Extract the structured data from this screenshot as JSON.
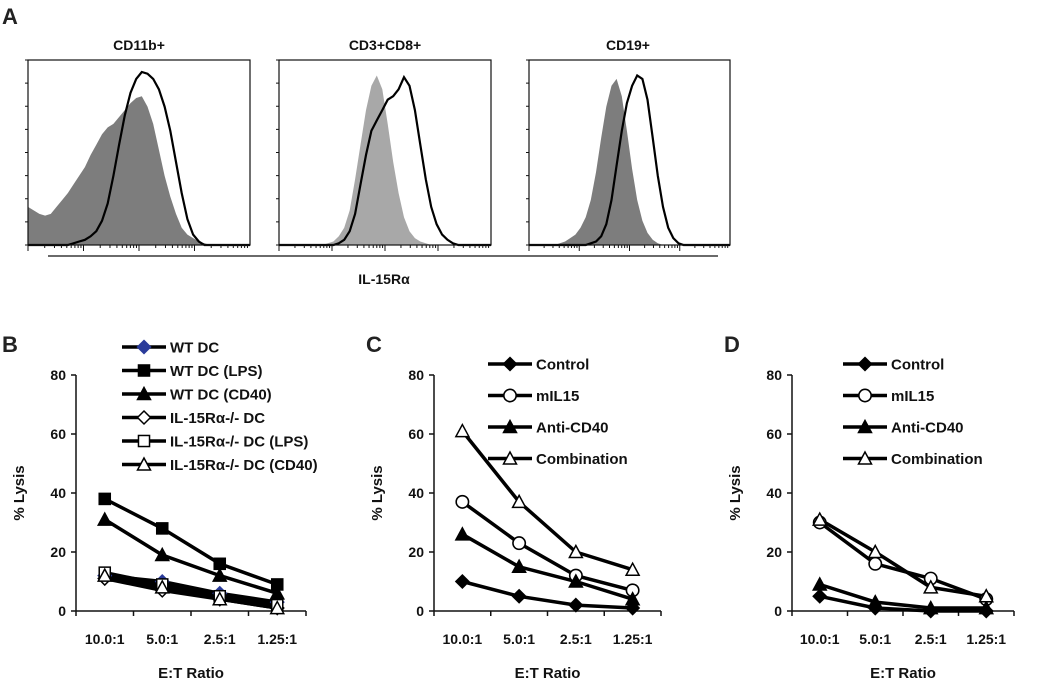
{
  "panel_letters": {
    "a": "A",
    "b": "B",
    "c": "C",
    "d": "D"
  },
  "histograms": {
    "xlabel": "IL-15Rα",
    "panels": [
      {
        "title": "CD11b+",
        "filled_color": "#7d7d7d",
        "filled": [
          0.22,
          0.2,
          0.18,
          0.17,
          0.18,
          0.22,
          0.26,
          0.3,
          0.35,
          0.4,
          0.45,
          0.52,
          0.58,
          0.64,
          0.68,
          0.7,
          0.74,
          0.78,
          0.82,
          0.85,
          0.86,
          0.8,
          0.7,
          0.55,
          0.4,
          0.28,
          0.18,
          0.1,
          0.06,
          0.04,
          0.02,
          0.01,
          0,
          0,
          0,
          0,
          0,
          0,
          0,
          0
        ],
        "open": [
          0,
          0,
          0,
          0,
          0,
          0,
          0,
          0,
          0.01,
          0.02,
          0.03,
          0.05,
          0.08,
          0.14,
          0.24,
          0.4,
          0.58,
          0.75,
          0.88,
          0.96,
          1.0,
          0.99,
          0.96,
          0.9,
          0.8,
          0.66,
          0.48,
          0.3,
          0.15,
          0.06,
          0.02,
          0,
          0,
          0,
          0,
          0,
          0,
          0,
          0,
          0
        ]
      },
      {
        "title": "CD3+CD8+",
        "filled_color": "#a8a8a8",
        "filled": [
          0,
          0,
          0,
          0,
          0,
          0,
          0,
          0,
          0,
          0.01,
          0.02,
          0.05,
          0.1,
          0.2,
          0.38,
          0.58,
          0.78,
          0.92,
          0.98,
          0.9,
          0.7,
          0.48,
          0.3,
          0.16,
          0.08,
          0.04,
          0.02,
          0.01,
          0,
          0,
          0,
          0,
          0,
          0,
          0,
          0,
          0,
          0,
          0,
          0
        ],
        "open": [
          0,
          0,
          0,
          0,
          0,
          0,
          0,
          0,
          0,
          0,
          0,
          0.01,
          0.03,
          0.08,
          0.18,
          0.35,
          0.52,
          0.66,
          0.72,
          0.78,
          0.84,
          0.86,
          0.9,
          0.97,
          0.92,
          0.78,
          0.58,
          0.38,
          0.22,
          0.12,
          0.06,
          0.03,
          0.01,
          0,
          0,
          0,
          0,
          0,
          0,
          0
        ]
      },
      {
        "title": "CD19+",
        "filled_color": "#7d7d7d",
        "filled": [
          0,
          0,
          0,
          0,
          0,
          0,
          0.01,
          0.02,
          0.04,
          0.06,
          0.1,
          0.16,
          0.26,
          0.42,
          0.62,
          0.8,
          0.92,
          0.96,
          0.86,
          0.66,
          0.44,
          0.26,
          0.14,
          0.07,
          0.03,
          0.01,
          0,
          0,
          0,
          0,
          0,
          0,
          0,
          0,
          0,
          0,
          0,
          0,
          0,
          0
        ],
        "open": [
          0,
          0,
          0,
          0,
          0,
          0,
          0,
          0,
          0,
          0,
          0,
          0,
          0.01,
          0.02,
          0.05,
          0.12,
          0.26,
          0.46,
          0.66,
          0.82,
          0.92,
          0.98,
          0.96,
          0.84,
          0.62,
          0.4,
          0.22,
          0.1,
          0.04,
          0.01,
          0,
          0,
          0,
          0,
          0,
          0,
          0,
          0,
          0,
          0
        ]
      }
    ]
  },
  "chart_data": [
    {
      "type": "line",
      "panel": "B",
      "xlabel": "E:T Ratio",
      "ylabel": "% Lysis",
      "ylim": [
        0,
        80
      ],
      "yticks": [
        0,
        20,
        40,
        60,
        80
      ],
      "categories": [
        "10.0:1",
        "5.0:1",
        "2.5:1",
        "1.25:1"
      ],
      "series": [
        {
          "name": "WT DC",
          "marker": "diamond-filled-blue",
          "values": [
            12,
            10,
            6,
            3
          ]
        },
        {
          "name": "WT DC (LPS)",
          "marker": "square-filled",
          "values": [
            38,
            28,
            16,
            9
          ]
        },
        {
          "name": "WT DC (CD40)",
          "marker": "triangle-filled",
          "values": [
            31,
            19,
            12,
            6
          ]
        },
        {
          "name": "IL-15Rα-/- DC",
          "marker": "diamond-open",
          "values": [
            11,
            7,
            4,
            1
          ]
        },
        {
          "name": "IL-15Rα-/- DC (LPS)",
          "marker": "square-open",
          "values": [
            13,
            9,
            5,
            2
          ]
        },
        {
          "name": "IL-15Rα-/- DC (CD40)",
          "marker": "triangle-open",
          "values": [
            12,
            8,
            4,
            1
          ]
        }
      ]
    },
    {
      "type": "line",
      "panel": "C",
      "xlabel": "E:T Ratio",
      "ylabel": "% Lysis",
      "ylim": [
        0,
        80
      ],
      "yticks": [
        0,
        20,
        40,
        60,
        80
      ],
      "categories": [
        "10.0:1",
        "5.0:1",
        "2.5:1",
        "1.25:1"
      ],
      "series": [
        {
          "name": "Control",
          "marker": "diamond-filled",
          "values": [
            10,
            5,
            2,
            1
          ]
        },
        {
          "name": "mIL15",
          "marker": "circle-open",
          "values": [
            37,
            23,
            12,
            7
          ]
        },
        {
          "name": "Anti-CD40",
          "marker": "triangle-filled",
          "values": [
            26,
            15,
            10,
            4
          ]
        },
        {
          "name": "Combination",
          "marker": "triangle-open",
          "values": [
            61,
            37,
            20,
            14
          ]
        }
      ]
    },
    {
      "type": "line",
      "panel": "D",
      "xlabel": "E:T Ratio",
      "ylabel": "% Lysis",
      "ylim": [
        0,
        80
      ],
      "yticks": [
        0,
        20,
        40,
        60,
        80
      ],
      "categories": [
        "10.0:1",
        "5.0:1",
        "2.5:1",
        "1.25:1"
      ],
      "series": [
        {
          "name": "Control",
          "marker": "diamond-filled",
          "values": [
            5,
            1,
            0,
            0
          ]
        },
        {
          "name": "mIL15",
          "marker": "circle-open",
          "values": [
            30,
            16,
            11,
            4
          ]
        },
        {
          "name": "Anti-CD40",
          "marker": "triangle-filled",
          "values": [
            9,
            3,
            1,
            1
          ]
        },
        {
          "name": "Combination",
          "marker": "triangle-open",
          "values": [
            31,
            20,
            8,
            5
          ]
        }
      ]
    }
  ]
}
